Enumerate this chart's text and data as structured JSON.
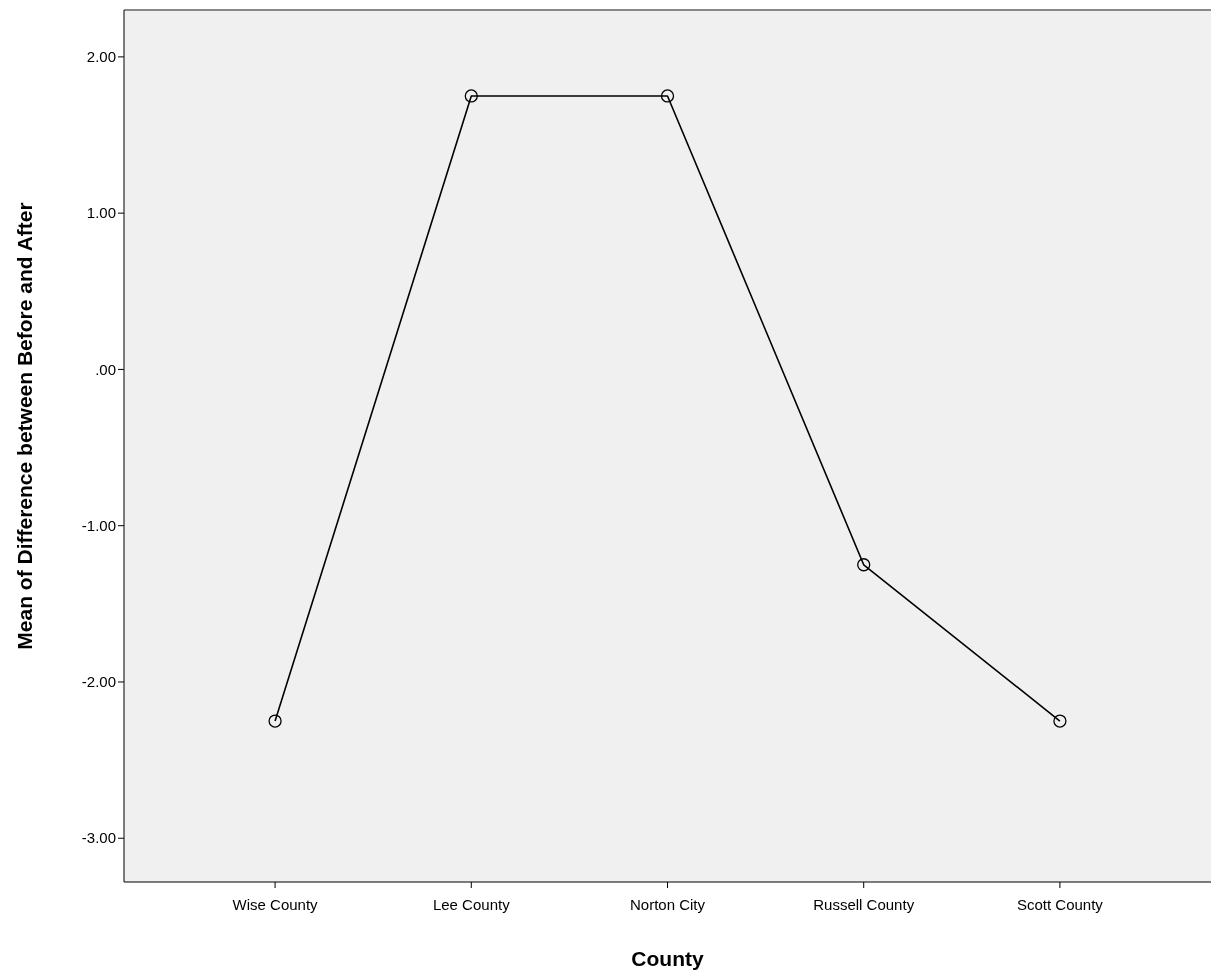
{
  "chart_data": {
    "type": "line",
    "xlabel": "County",
    "ylabel": "Mean of Difference between Before and After",
    "categories": [
      "Wise County",
      "Lee County",
      "Norton City",
      "Russell County",
      "Scott County"
    ],
    "series": [
      {
        "color": "#000000",
        "values": [
          -2.25,
          1.75,
          1.75,
          -1.25,
          -2.25
        ]
      }
    ],
    "ylim": [
      -3.28,
      2.3
    ],
    "yticks": [
      {
        "value": -3,
        "label": "-3.00"
      },
      {
        "value": -2,
        "label": "-2.00"
      },
      {
        "value": -1,
        "label": "-1.00"
      },
      {
        "value": 0,
        "label": ".00"
      },
      {
        "value": 1,
        "label": "1.00"
      },
      {
        "value": 2,
        "label": "2.00"
      }
    ],
    "grid": false,
    "marker": "circle",
    "line_style": "solid"
  }
}
